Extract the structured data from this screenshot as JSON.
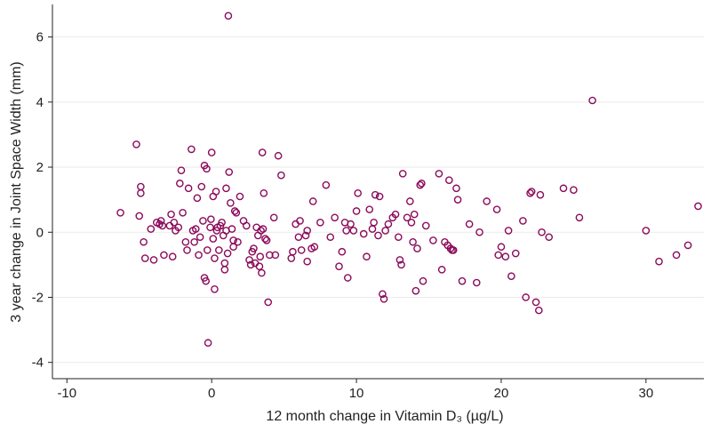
{
  "chart_data": {
    "type": "scatter",
    "title": "",
    "xlabel": "12 month change in Vitamin D₃ (µg/L)",
    "ylabel": "3 year change in Joint Space Width (mm)",
    "xlim": [
      -11,
      34
    ],
    "ylim": [
      -4.5,
      7
    ],
    "xticks": [
      -10,
      0,
      10,
      20,
      30
    ],
    "yticks": [
      -4,
      -2,
      0,
      2,
      4,
      6
    ],
    "xtick_labels": [
      "-10",
      "0",
      "10",
      "20",
      "30"
    ],
    "ytick_labels": [
      "-4",
      "-2",
      "0",
      "2",
      "4",
      "6"
    ],
    "grid": "horizontal",
    "marker_color": "#8b0a5a",
    "grid_color": "#eaeaea",
    "axis_color": "#222222",
    "points": [
      [
        -6.3,
        0.6
      ],
      [
        -5.2,
        2.7
      ],
      [
        -5,
        0.5
      ],
      [
        -4.9,
        1.4
      ],
      [
        -4.9,
        1.2
      ],
      [
        -4.7,
        -0.3
      ],
      [
        -4.6,
        -0.8
      ],
      [
        -4.2,
        0.1
      ],
      [
        -4,
        -0.85
      ],
      [
        -3.8,
        0.3
      ],
      [
        -3.6,
        0.25
      ],
      [
        -3.5,
        0.35
      ],
      [
        -3.4,
        0.2
      ],
      [
        -3.3,
        -0.7
      ],
      [
        -2.9,
        0.2
      ],
      [
        -2.8,
        0.55
      ],
      [
        -2.7,
        -0.75
      ],
      [
        -2.6,
        0.3
      ],
      [
        -2.5,
        0.05
      ],
      [
        -2.3,
        0.15
      ],
      [
        -2.2,
        1.5
      ],
      [
        -2.1,
        1.9
      ],
      [
        -2,
        0.6
      ],
      [
        -1.8,
        -0.3
      ],
      [
        -1.7,
        -0.55
      ],
      [
        -1.6,
        1.35
      ],
      [
        -1.4,
        2.55
      ],
      [
        -1.3,
        0.05
      ],
      [
        -1.2,
        -0.3
      ],
      [
        -1.1,
        0.1
      ],
      [
        -1,
        1.05
      ],
      [
        -0.9,
        -0.7
      ],
      [
        -0.8,
        -0.15
      ],
      [
        -0.7,
        1.4
      ],
      [
        -0.6,
        0.35
      ],
      [
        -0.5,
        2.05
      ],
      [
        -0.5,
        -1.4
      ],
      [
        -0.4,
        -1.5
      ],
      [
        -0.35,
        1.95
      ],
      [
        -0.3,
        -0.55
      ],
      [
        -0.25,
        -3.4
      ],
      [
        -0.1,
        0.15
      ],
      [
        -0.05,
        0.4
      ],
      [
        0.1,
        1.1
      ],
      [
        0.1,
        -0.2
      ],
      [
        0,
        2.45
      ],
      [
        0.2,
        -0.8
      ],
      [
        0.2,
        -1.75
      ],
      [
        0.3,
        1.25
      ],
      [
        0.35,
        0.05
      ],
      [
        0.4,
        0.15
      ],
      [
        0.5,
        -0.55
      ],
      [
        0.6,
        0.2
      ],
      [
        0.7,
        0.3
      ],
      [
        0.8,
        -0.1
      ],
      [
        0.9,
        -0.95
      ],
      [
        0.9,
        -1.15
      ],
      [
        1,
        1.35
      ],
      [
        1,
        0.05
      ],
      [
        1.1,
        -0.65
      ],
      [
        1.15,
        6.65
      ],
      [
        1.2,
        1.85
      ],
      [
        1.3,
        0.9
      ],
      [
        1.4,
        0.1
      ],
      [
        1.5,
        -0.25
      ],
      [
        1.5,
        -0.45
      ],
      [
        1.6,
        0.65
      ],
      [
        1.7,
        0.6
      ],
      [
        1.8,
        -0.3
      ],
      [
        1.95,
        1.1
      ],
      [
        2.2,
        0.35
      ],
      [
        2.4,
        0.2
      ],
      [
        2.6,
        -0.85
      ],
      [
        2.7,
        -1
      ],
      [
        2.8,
        -0.6
      ],
      [
        2.9,
        -0.5
      ],
      [
        3,
        -0.95
      ],
      [
        3.1,
        0.15
      ],
      [
        3.2,
        -0.1
      ],
      [
        3.3,
        -1.05
      ],
      [
        3.35,
        -0.75
      ],
      [
        3.4,
        0.05
      ],
      [
        3.45,
        -1.25
      ],
      [
        3.5,
        2.45
      ],
      [
        3.55,
        0.1
      ],
      [
        3.6,
        1.2
      ],
      [
        3.7,
        -0.2
      ],
      [
        3.8,
        -0.25
      ],
      [
        3.9,
        -2.15
      ],
      [
        4,
        -0.7
      ],
      [
        4.3,
        0.45
      ],
      [
        4.4,
        -0.7
      ],
      [
        4.6,
        2.35
      ],
      [
        4.8,
        1.75
      ],
      [
        5.5,
        -0.8
      ],
      [
        5.6,
        -0.6
      ],
      [
        5.8,
        0.25
      ],
      [
        6,
        -0.15
      ],
      [
        6.1,
        0.35
      ],
      [
        6.2,
        -0.55
      ],
      [
        6.5,
        -0.1
      ],
      [
        6.6,
        0.05
      ],
      [
        6.6,
        -0.9
      ],
      [
        6.9,
        -0.5
      ],
      [
        7,
        0.95
      ],
      [
        7.1,
        -0.45
      ],
      [
        7.5,
        0.3
      ],
      [
        7.9,
        1.45
      ],
      [
        8.2,
        -0.15
      ],
      [
        8.5,
        0.45
      ],
      [
        8.8,
        -1.05
      ],
      [
        9,
        -0.6
      ],
      [
        9.2,
        0.3
      ],
      [
        9.3,
        0.05
      ],
      [
        9.4,
        -1.4
      ],
      [
        9.6,
        0.25
      ],
      [
        9.8,
        0.05
      ],
      [
        10,
        0.65
      ],
      [
        10.1,
        1.2
      ],
      [
        10.5,
        -0.05
      ],
      [
        10.7,
        -0.75
      ],
      [
        10.9,
        0.7
      ],
      [
        11.1,
        0.1
      ],
      [
        11.2,
        0.3
      ],
      [
        11.3,
        1.15
      ],
      [
        11.5,
        -0.1
      ],
      [
        11.6,
        1.1
      ],
      [
        11.8,
        -1.9
      ],
      [
        11.9,
        -2.05
      ],
      [
        12,
        0.05
      ],
      [
        12.2,
        0.25
      ],
      [
        12.5,
        0.45
      ],
      [
        12.7,
        0.55
      ],
      [
        12.9,
        -0.15
      ],
      [
        13,
        -0.85
      ],
      [
        13.1,
        -1
      ],
      [
        13.2,
        1.8
      ],
      [
        13.5,
        0.45
      ],
      [
        13.7,
        0.95
      ],
      [
        13.8,
        0.3
      ],
      [
        13.9,
        -0.3
      ],
      [
        14,
        0.55
      ],
      [
        14.1,
        -1.8
      ],
      [
        14.2,
        -0.5
      ],
      [
        14.4,
        1.45
      ],
      [
        14.5,
        1.5
      ],
      [
        14.6,
        -1.5
      ],
      [
        14.8,
        0.2
      ],
      [
        15.3,
        -0.25
      ],
      [
        15.7,
        1.8
      ],
      [
        15.9,
        -1.15
      ],
      [
        16.1,
        -0.3
      ],
      [
        16.3,
        -0.4
      ],
      [
        16.4,
        1.6
      ],
      [
        16.5,
        -0.5
      ],
      [
        16.6,
        -0.55
      ],
      [
        16.7,
        -0.55
      ],
      [
        16.9,
        1.35
      ],
      [
        17,
        1
      ],
      [
        17.3,
        -1.5
      ],
      [
        17.8,
        0.25
      ],
      [
        18.3,
        -1.55
      ],
      [
        18.5,
        0
      ],
      [
        19,
        0.95
      ],
      [
        19.7,
        0.7
      ],
      [
        19.8,
        -0.7
      ],
      [
        20,
        -0.45
      ],
      [
        20.3,
        -0.75
      ],
      [
        20.5,
        0.05
      ],
      [
        20.7,
        -1.35
      ],
      [
        21,
        -0.65
      ],
      [
        21.5,
        0.35
      ],
      [
        21.7,
        -2
      ],
      [
        22,
        1.2
      ],
      [
        22.1,
        1.25
      ],
      [
        22.4,
        -2.15
      ],
      [
        22.6,
        -2.4
      ],
      [
        22.7,
        1.15
      ],
      [
        22.8,
        0
      ],
      [
        23.3,
        -0.15
      ],
      [
        24.3,
        1.35
      ],
      [
        25,
        1.3
      ],
      [
        25.4,
        0.45
      ],
      [
        26.3,
        4.05
      ],
      [
        30,
        0.05
      ],
      [
        30.9,
        -0.9
      ],
      [
        32.1,
        -0.7
      ],
      [
        32.9,
        -0.4
      ],
      [
        33.6,
        0.8
      ]
    ]
  }
}
